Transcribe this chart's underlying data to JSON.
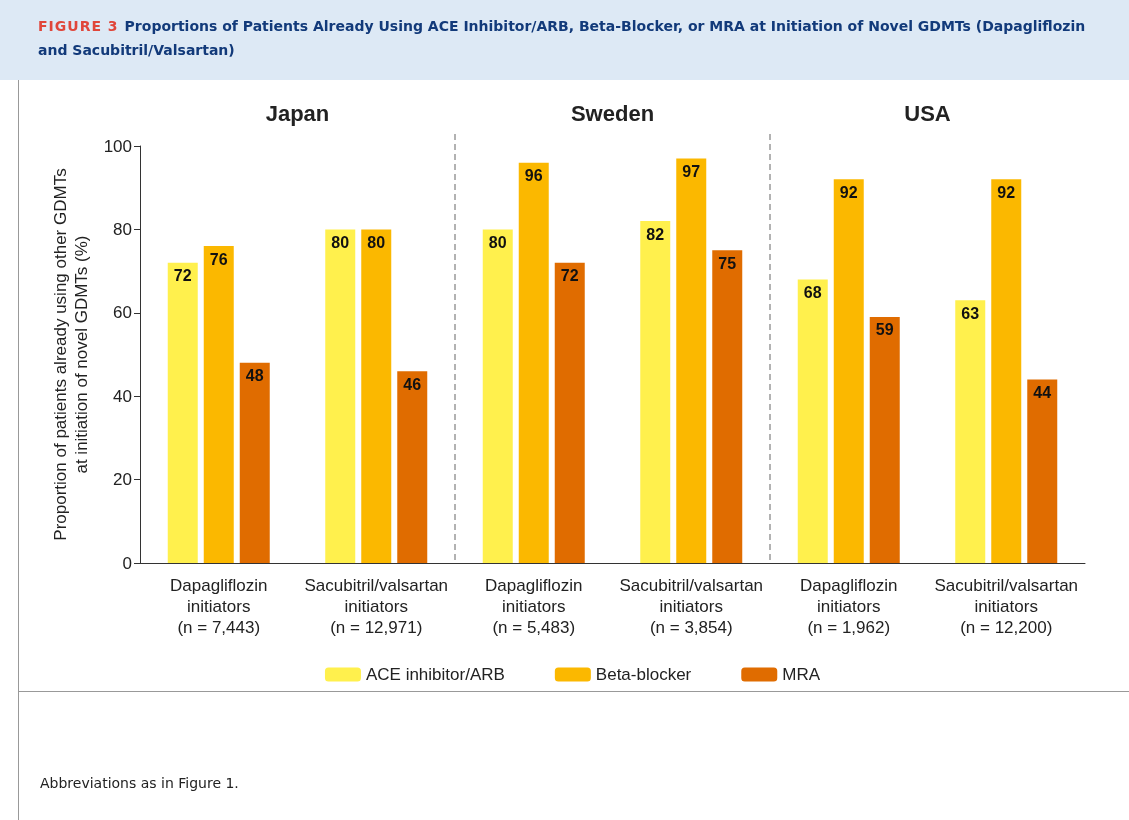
{
  "chart_data": {
    "type": "bar",
    "title": "FIGURE 3 Proportions of Patients Already Using ACE Inhibitor/ARB, Beta-Blocker, or MRA at Initiation of Novel GDMTs (Dapagliflozin and Sacubitril/Valsartan)",
    "ylabel": "Proportion of patients already using other GDMTs\nat initiation of novel GDMTs (%)",
    "annotations": [
      "Japan",
      "Sweden",
      "USA",
      "Abbreviations as in Figure 1."
    ],
    "categories": [
      "Dapagliflozin\ninitiators\n(n = 7,443)",
      "Sacubitril/valsartan\ninitiators\n(n = 12,971)",
      "Dapagliflozin\ninitiators\n(n = 5,483)",
      "Sacubitril/valsartan\ninitiators\n(n = 3,854)",
      "Dapagliflozin\ninitiators\n(n = 1,962)",
      "Sacubitril/valsartan\ninitiators\n(n = 12,200)"
    ],
    "series": [
      {
        "name": "ACE inhibitor/ARB",
        "color": "#fff04d",
        "values": [
          72,
          80,
          80,
          82,
          68,
          63
        ]
      },
      {
        "name": "Beta-blocker",
        "color": "#fbb800",
        "values": [
          76,
          80,
          96,
          97,
          92,
          92
        ]
      },
      {
        "name": "MRA",
        "color": "#e06c00",
        "values": [
          48,
          46,
          72,
          75,
          59,
          44
        ]
      }
    ],
    "ylim": [
      0,
      100
    ],
    "yticks": [
      0,
      20,
      40,
      60,
      80,
      100
    ],
    "data_labels": true,
    "legend": "bottom",
    "grid": false
  }
}
